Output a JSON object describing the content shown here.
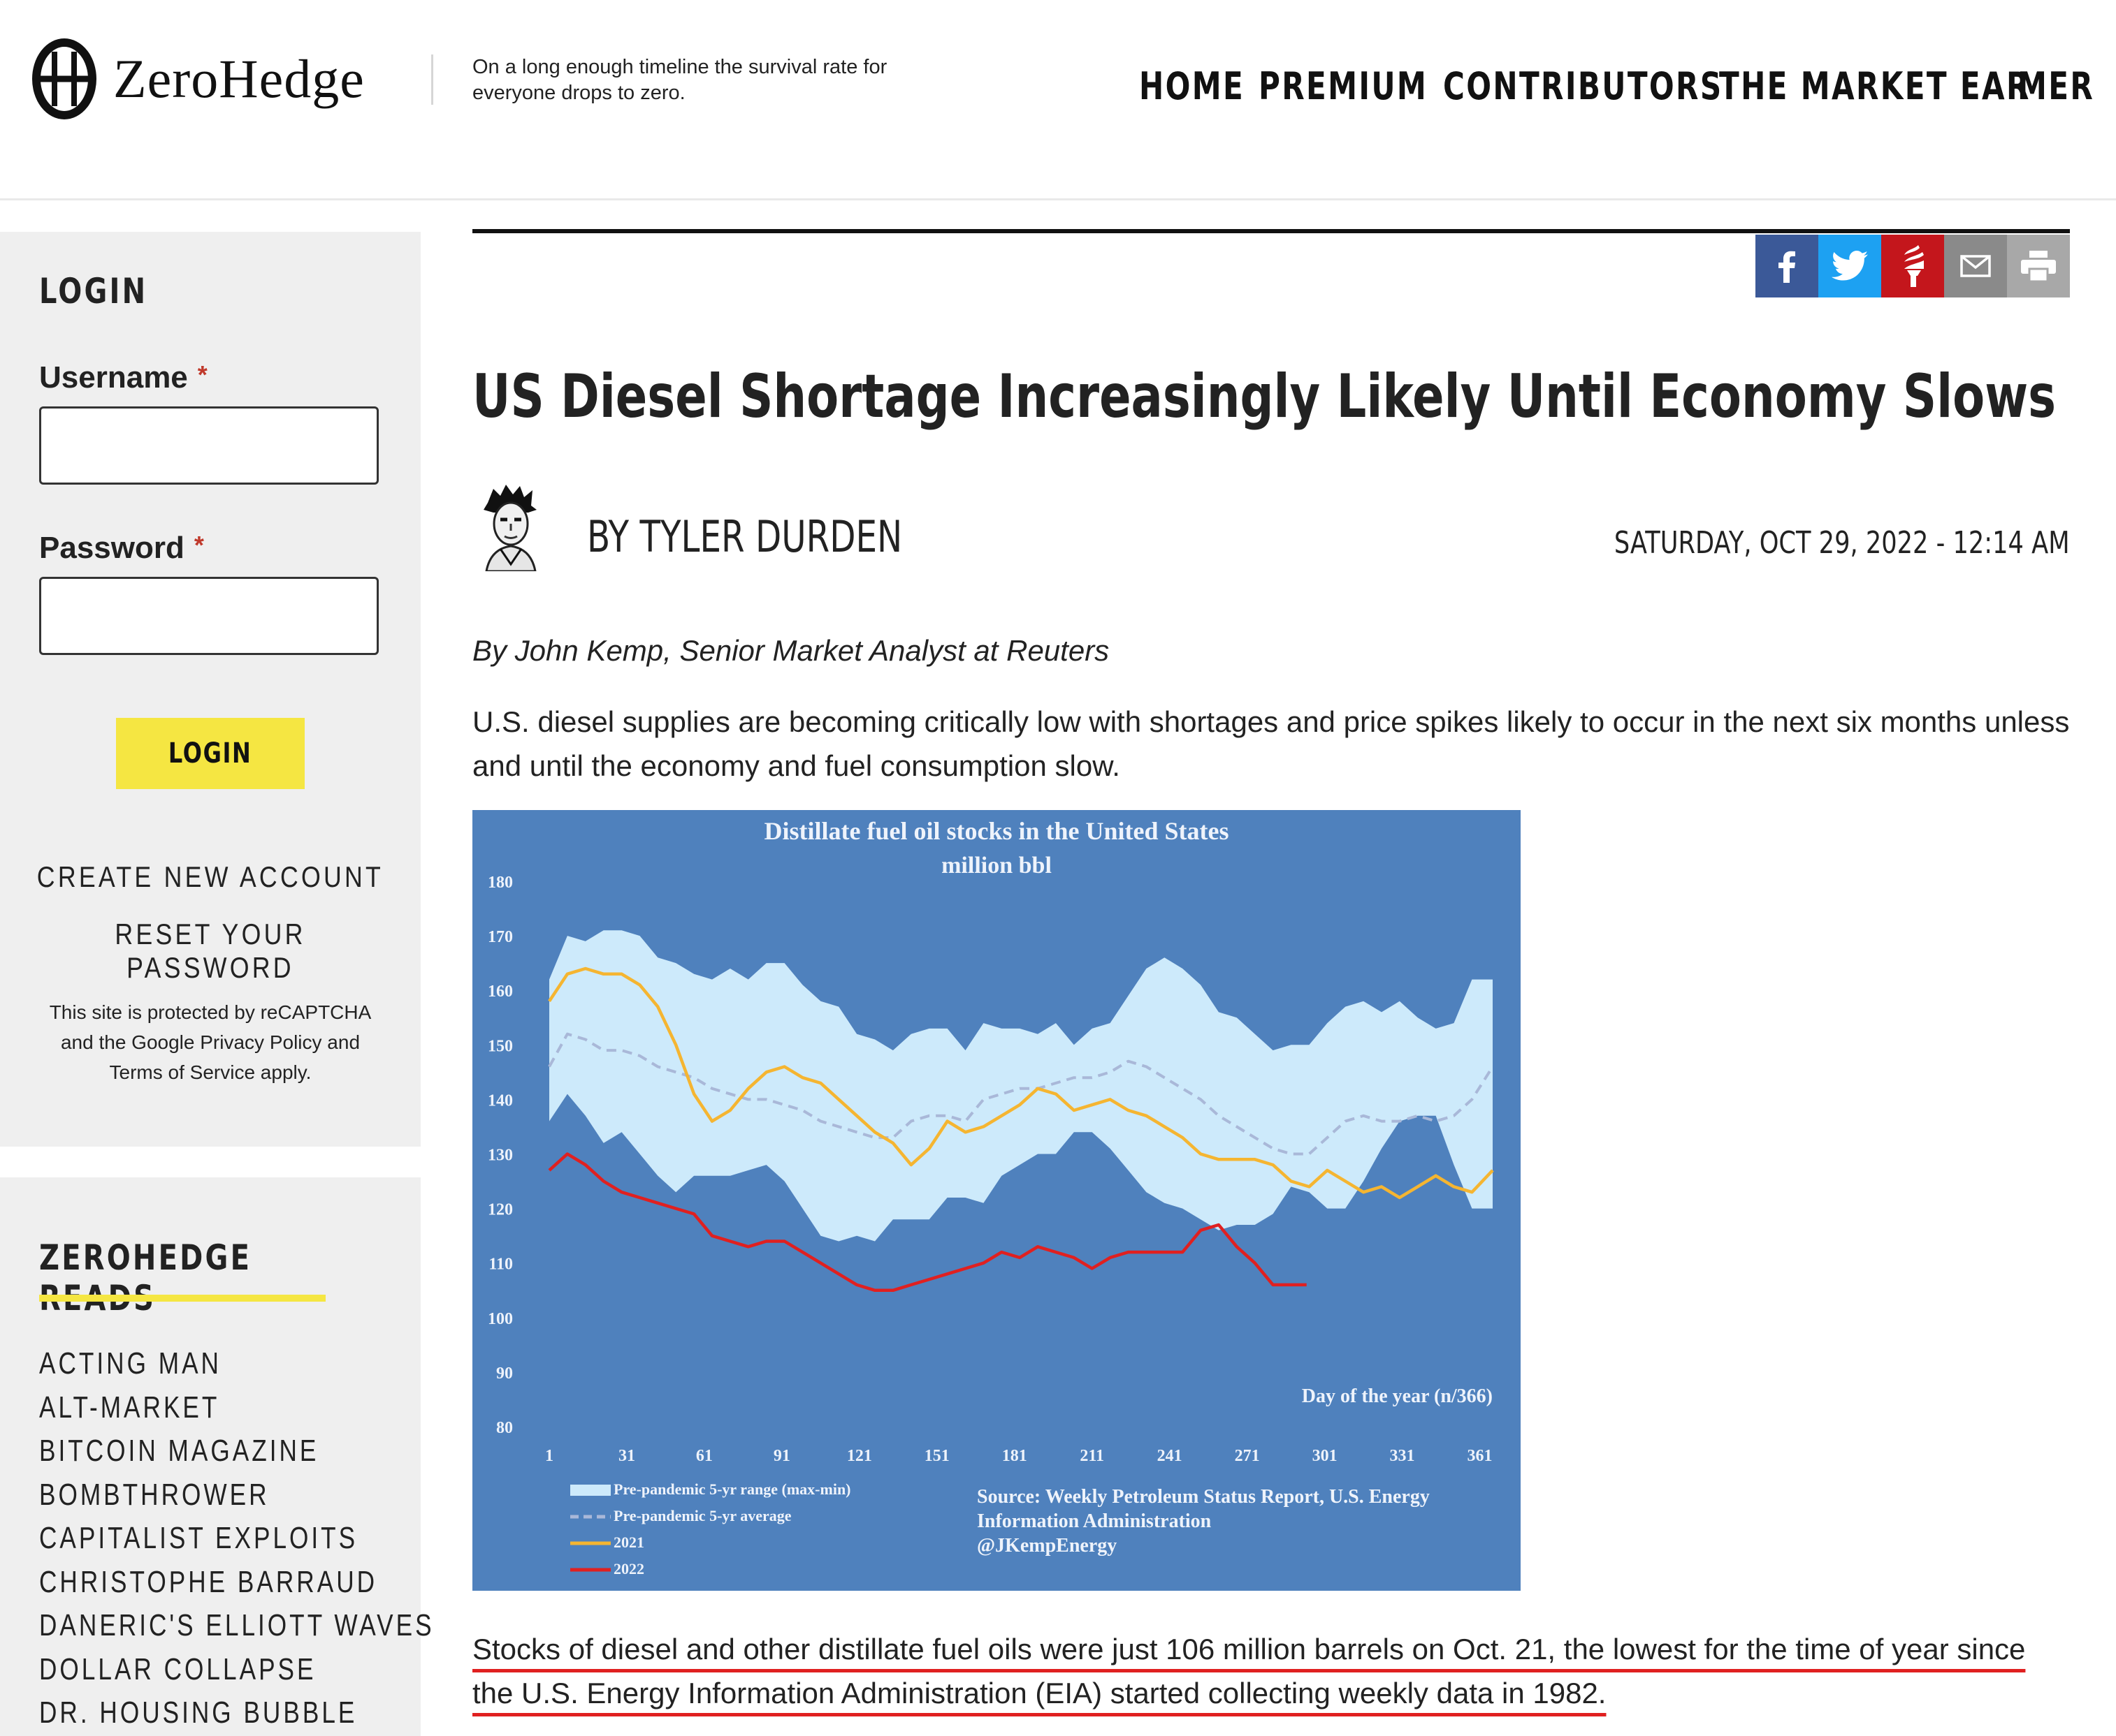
{
  "header": {
    "logo_text": "ZeroHedge",
    "tagline": "On a long enough timeline the survival rate for everyone drops to zero.",
    "nav": [
      "HOME",
      "PREMIUM",
      "CONTRIBUTORS",
      "THE MARKET EAR",
      "MER"
    ]
  },
  "sidebar": {
    "login_title": "LOGIN",
    "username_label": "Username",
    "password_label": "Password",
    "required_mark": "*",
    "login_button": "LOGIN",
    "create_account": "CREATE NEW ACCOUNT",
    "reset_password": "RESET YOUR PASSWORD",
    "recaptcha_text": "This site is protected by reCAPTCHA and the Google Privacy Policy and Terms of Service apply.",
    "reads_title": "ZEROHEDGE READS",
    "reads": [
      "ACTING MAN",
      "ALT-MARKET",
      "BITCOIN MAGAZINE",
      "BOMBTHROWER",
      "CAPITALIST EXPLOITS",
      "CHRISTOPHE BARRAUD",
      "DANERIC'S ELLIOTT WAVES",
      "DOLLAR COLLAPSE",
      "DR. HOUSING BUBBLE"
    ]
  },
  "share_icons": [
    {
      "name": "facebook-icon",
      "color": "#3b5998"
    },
    {
      "name": "twitter-icon",
      "color": "#1da1f2"
    },
    {
      "name": "torch-icon",
      "color": "#c4161c"
    },
    {
      "name": "email-icon",
      "color": "#8a8a8a"
    },
    {
      "name": "print-icon",
      "color": "#a8a8a8"
    }
  ],
  "article": {
    "title": "US Diesel Shortage Increasingly Likely Until Economy Slows",
    "author": "BY TYLER DURDEN",
    "date": "SATURDAY, OCT 29, 2022 - 12:14 AM",
    "byline": "By John Kemp, Senior Market Analyst at Reuters",
    "intro": "U.S. diesel supplies are becoming critically low with shortages and price spikes likely to occur in the next six months unless and until the economy and fuel consumption slow.",
    "paragraph2": "Stocks of diesel and other distillate fuel oils were just 106 million barrels on Oct. 21, the lowest for the time of year since the U.S. Energy Information Administration (EIA) started collecting weekly data in 1982."
  },
  "chart_data": {
    "type": "line",
    "title": "Distillate fuel oil stocks in the United States",
    "subtitle": "million bbl",
    "xlabel": "Day of the year (n/366)",
    "source": "Source: Weekly Petroleum Status Report, U.S. Energy Information Administration @JKempEnergy",
    "ylim": [
      80,
      180
    ],
    "xlim": [
      1,
      366
    ],
    "yticks": [
      80,
      90,
      100,
      110,
      120,
      130,
      140,
      150,
      160,
      170,
      180
    ],
    "xticks": [
      1,
      31,
      61,
      91,
      121,
      151,
      181,
      211,
      241,
      271,
      301,
      331,
      361
    ],
    "background_color": "#4f81bd",
    "range": {
      "name": "Pre-pandemic 5-yr range (max-min)",
      "color": "#cdeafb",
      "x": [
        1,
        8,
        15,
        22,
        29,
        36,
        43,
        50,
        57,
        64,
        71,
        78,
        85,
        92,
        99,
        106,
        113,
        120,
        127,
        134,
        141,
        148,
        155,
        162,
        169,
        176,
        183,
        190,
        197,
        204,
        211,
        218,
        225,
        232,
        239,
        246,
        253,
        260,
        267,
        274,
        281,
        288,
        295,
        302,
        309,
        316,
        323,
        330,
        337,
        344,
        351,
        358,
        366
      ],
      "max": [
        162,
        170,
        169,
        171,
        171,
        170,
        166,
        165,
        163,
        162,
        164,
        162,
        165,
        165,
        161,
        158,
        157,
        152,
        151,
        149,
        152,
        153,
        153,
        149,
        154,
        153,
        153,
        152,
        154,
        150,
        153,
        154,
        159,
        164,
        166,
        164,
        161,
        156,
        155,
        152,
        149,
        150,
        150,
        154,
        157,
        158,
        156,
        158,
        155,
        153,
        154,
        162,
        162
      ],
      "min": [
        136,
        141,
        137,
        132,
        134,
        130,
        126,
        123,
        126,
        126,
        126,
        127,
        128,
        125,
        120,
        115,
        114,
        115,
        114,
        118,
        118,
        118,
        122,
        122,
        121,
        126,
        128,
        130,
        130,
        134,
        134,
        131,
        127,
        123,
        121,
        120,
        118,
        116,
        117,
        117,
        119,
        124,
        123,
        120,
        120,
        125,
        131,
        136,
        137,
        137,
        128,
        120,
        120
      ]
    },
    "series": [
      {
        "name": "Pre-pandemic 5-yr average",
        "color": "#a9b8d8",
        "dashed": true,
        "x": [
          1,
          8,
          15,
          22,
          29,
          36,
          43,
          50,
          57,
          64,
          71,
          78,
          85,
          92,
          99,
          106,
          113,
          120,
          127,
          134,
          141,
          148,
          155,
          162,
          169,
          176,
          183,
          190,
          197,
          204,
          211,
          218,
          225,
          232,
          239,
          246,
          253,
          260,
          267,
          274,
          281,
          288,
          295,
          302,
          309,
          316,
          323,
          330,
          337,
          344,
          351,
          358,
          366
        ],
        "y": [
          146,
          152,
          151,
          149,
          149,
          148,
          146,
          145,
          144,
          142,
          141,
          140,
          140,
          139,
          138,
          136,
          135,
          134,
          133,
          133,
          136,
          137,
          137,
          136,
          140,
          141,
          142,
          142,
          143,
          144,
          144,
          145,
          147,
          146,
          144,
          142,
          140,
          137,
          135,
          133,
          131,
          130,
          130,
          133,
          136,
          137,
          136,
          136,
          137,
          136,
          137,
          140,
          146
        ]
      },
      {
        "name": "2021",
        "color": "#f5b531",
        "x": [
          1,
          8,
          15,
          22,
          29,
          36,
          43,
          50,
          57,
          64,
          71,
          78,
          85,
          92,
          99,
          106,
          113,
          120,
          127,
          134,
          141,
          148,
          155,
          162,
          169,
          176,
          183,
          190,
          197,
          204,
          211,
          218,
          225,
          232,
          239,
          246,
          253,
          260,
          267,
          274,
          281,
          288,
          295,
          302,
          309,
          316,
          323,
          330,
          337,
          344,
          351,
          358,
          366
        ],
        "y": [
          158,
          163,
          164,
          163,
          163,
          161,
          157,
          150,
          141,
          136,
          138,
          142,
          145,
          146,
          144,
          143,
          140,
          137,
          134,
          132,
          128,
          131,
          136,
          134,
          135,
          137,
          139,
          142,
          141,
          138,
          139,
          140,
          138,
          137,
          135,
          133,
          130,
          129,
          129,
          129,
          128,
          125,
          124,
          127,
          125,
          123,
          124,
          122,
          124,
          126,
          124,
          123,
          127
        ]
      },
      {
        "name": "2022",
        "color": "#e02020",
        "x": [
          1,
          8,
          15,
          22,
          29,
          36,
          43,
          50,
          57,
          64,
          71,
          78,
          85,
          92,
          99,
          106,
          113,
          120,
          127,
          134,
          141,
          148,
          155,
          162,
          169,
          176,
          183,
          190,
          197,
          204,
          211,
          218,
          225,
          232,
          239,
          246,
          253,
          260,
          267,
          274,
          281,
          288,
          294
        ],
        "y": [
          127,
          130,
          128,
          125,
          123,
          122,
          121,
          120,
          119,
          115,
          114,
          113,
          114,
          114,
          112,
          110,
          108,
          106,
          105,
          105,
          106,
          107,
          108,
          109,
          110,
          112,
          111,
          113,
          112,
          111,
          109,
          111,
          112,
          112,
          112,
          112,
          116,
          117,
          113,
          110,
          106,
          106,
          106
        ]
      }
    ]
  }
}
